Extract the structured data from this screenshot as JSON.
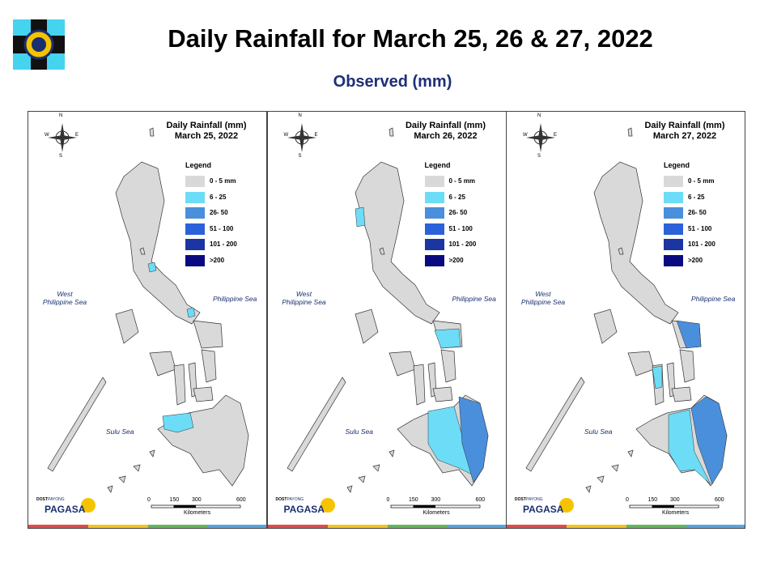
{
  "header": {
    "title": "Daily Rainfall for March 25, 26 & 27, 2022",
    "subtitle": "Observed (mm)"
  },
  "panels": [
    {
      "title": "Daily Rainfall (mm)",
      "date": "March 25, 2022",
      "legend_title": "Legend",
      "legend": [
        {
          "label": "0 - 5 mm",
          "color": "#d9d9d9"
        },
        {
          "label": "6 - 25",
          "color": "#6ddcf7"
        },
        {
          "label": "26- 50",
          "color": "#4a8fdb"
        },
        {
          "label": "51 - 100",
          "color": "#2b62d9"
        },
        {
          "label": "101 - 200",
          "color": "#1b35a3"
        },
        {
          "label": ">200",
          "color": "#0a0a80"
        }
      ],
      "west_sea": [
        "West",
        "Philippine Sea"
      ],
      "east_sea": "Philippine Sea",
      "south_sea": "Sulu Sea",
      "compass": [
        "N",
        "S",
        "W",
        "E"
      ],
      "scale": [
        0,
        150,
        300,
        600
      ],
      "scale_unit": "Kilometers",
      "logo": {
        "agency": "DOST",
        "brand": "PAYONG",
        "name": "PAGASA"
      }
    },
    {
      "title": "Daily Rainfall (mm)",
      "date": "March 26, 2022",
      "legend_title": "Legend",
      "legend": [
        {
          "label": "0 - 5 mm",
          "color": "#d9d9d9"
        },
        {
          "label": "6 - 25",
          "color": "#6ddcf7"
        },
        {
          "label": "26- 50",
          "color": "#4a8fdb"
        },
        {
          "label": "51 - 100",
          "color": "#2b62d9"
        },
        {
          "label": "101 - 200",
          "color": "#1b35a3"
        },
        {
          "label": ">200",
          "color": "#0a0a80"
        }
      ],
      "west_sea": [
        "West",
        "Philippine Sea"
      ],
      "east_sea": "Philippine Sea",
      "south_sea": "Sulu Sea",
      "compass": [
        "N",
        "S",
        "W",
        "E"
      ],
      "scale": [
        0,
        150,
        300,
        600
      ],
      "scale_unit": "Kilometers",
      "logo": {
        "agency": "DOST",
        "brand": "PAYONG",
        "name": "PAGASA"
      }
    },
    {
      "title": "Daily Rainfall (mm)",
      "date": "March 27, 2022",
      "legend_title": "Legend",
      "legend": [
        {
          "label": "0 - 5 mm",
          "color": "#d9d9d9"
        },
        {
          "label": "6 - 25",
          "color": "#6ddcf7"
        },
        {
          "label": "26- 50",
          "color": "#4a8fdb"
        },
        {
          "label": "51 - 100",
          "color": "#2b62d9"
        },
        {
          "label": "101 - 200",
          "color": "#1b35a3"
        },
        {
          "label": ">200",
          "color": "#0a0a80"
        }
      ],
      "west_sea": [
        "West",
        "Philippine Sea"
      ],
      "east_sea": "Philippine Sea",
      "south_sea": "Sulu Sea",
      "compass": [
        "N",
        "S",
        "W",
        "E"
      ],
      "scale": [
        0,
        150,
        300,
        600
      ],
      "scale_unit": "Kilometers",
      "logo": {
        "agency": "DOST",
        "brand": "PAYONG",
        "name": "PAGASA"
      }
    }
  ]
}
